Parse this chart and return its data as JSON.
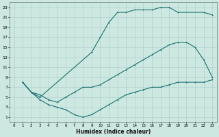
{
  "bg_color": "#cce8e0",
  "grid_color": "#aacccc",
  "line_color": "#1a7070",
  "xlabel": "Humidex (Indice chaleur)",
  "xlim": [
    -0.5,
    23.5
  ],
  "ylim": [
    0,
    24
  ],
  "xticks": [
    0,
    1,
    2,
    3,
    4,
    5,
    6,
    7,
    8,
    9,
    10,
    11,
    12,
    13,
    14,
    15,
    16,
    17,
    18,
    19,
    20,
    21,
    22,
    23
  ],
  "yticks": [
    1,
    3,
    5,
    7,
    9,
    11,
    13,
    15,
    17,
    19,
    21,
    23
  ],
  "curve_upper": {
    "x": [
      1,
      2,
      3,
      9,
      10,
      11,
      12,
      13,
      14,
      15,
      16,
      17,
      18,
      19,
      22,
      23
    ],
    "y": [
      8,
      6,
      5,
      14,
      17,
      20,
      22,
      22,
      22.5,
      22.5,
      22.5,
      23,
      23,
      22,
      22,
      21.5
    ]
  },
  "curve_middle": {
    "x": [
      1,
      2,
      3,
      4,
      5,
      6,
      7,
      8,
      9,
      10,
      11,
      12,
      13,
      14,
      15,
      16,
      17,
      18,
      19,
      20,
      21,
      22,
      23
    ],
    "y": [
      8,
      6,
      5.5,
      4.5,
      4,
      5,
      6,
      7,
      7,
      7.5,
      8.5,
      9.5,
      10.5,
      11.5,
      12.5,
      13.5,
      14.5,
      15.5,
      16,
      16,
      15,
      12.5,
      9
    ]
  },
  "curve_lower": {
    "x": [
      1,
      2,
      3,
      4,
      5,
      6,
      7,
      8,
      9,
      10,
      11,
      12,
      13,
      14,
      15,
      16,
      17,
      18,
      19,
      20,
      21,
      22,
      23
    ],
    "y": [
      8,
      6,
      4.5,
      3.5,
      3,
      2.5,
      1.5,
      1,
      1.5,
      2.5,
      3.5,
      4.5,
      5.5,
      6,
      6.5,
      7,
      7,
      7.5,
      8,
      8,
      8,
      8,
      8.5
    ]
  }
}
